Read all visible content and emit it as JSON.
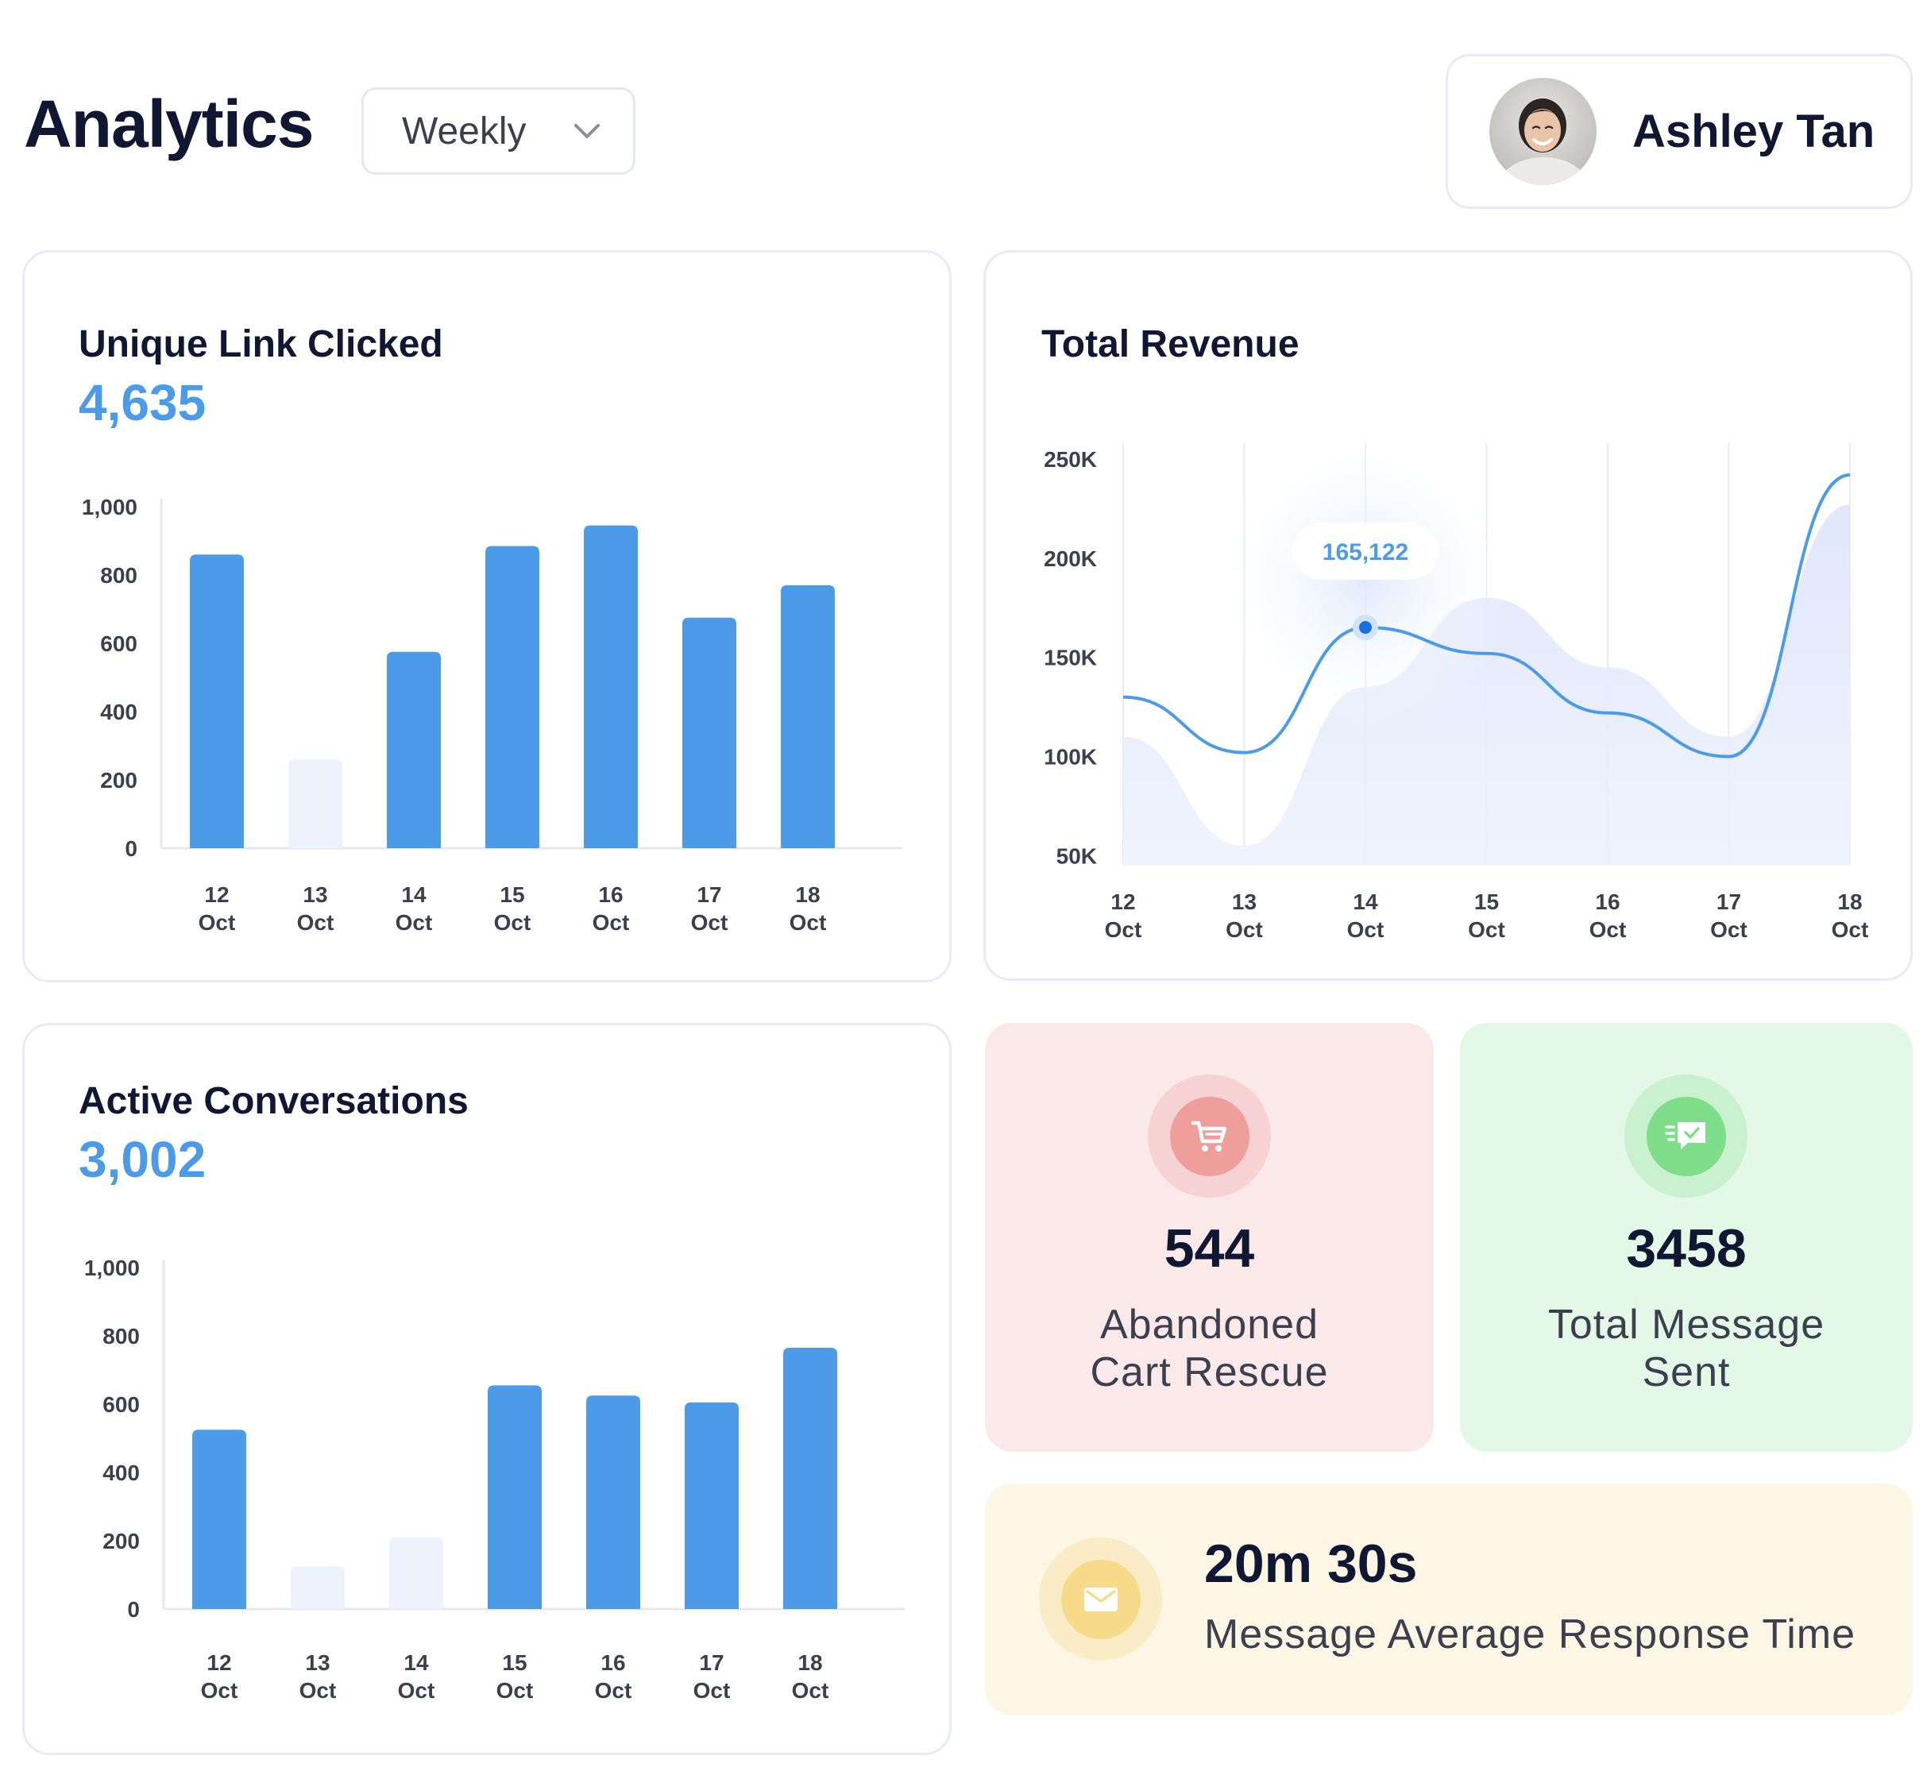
{
  "header": {
    "title": "Analytics",
    "period": {
      "selected": "Weekly",
      "icon": "chevron-down-icon"
    },
    "user": {
      "name": "Ashley Tan",
      "avatar": "user-avatar-photo"
    }
  },
  "colors": {
    "accent": "#4c9be8",
    "bar_muted": "#edf2fd",
    "pink_tile": "#fbe9e9",
    "green_tile": "#e3f8e6",
    "yellow_tile": "#fdf6e4"
  },
  "unique_link": {
    "title": "Unique Link Clicked",
    "value": "4,635",
    "chart_data": {
      "type": "bar",
      "categories": [
        "12 Oct",
        "13 Oct",
        "14 Oct",
        "15 Oct",
        "16 Oct",
        "17 Oct",
        "18 Oct"
      ],
      "values": [
        860,
        260,
        575,
        885,
        945,
        675,
        770
      ],
      "highlighted": [
        true,
        false,
        true,
        true,
        true,
        true,
        true
      ],
      "yticks": [
        "1,000",
        "800",
        "600",
        "400",
        "200",
        "0"
      ],
      "ylim": [
        0,
        1000
      ]
    }
  },
  "total_revenue": {
    "title": "Total Revenue",
    "tooltip": "165,122",
    "chart_data": {
      "type": "line",
      "x": [
        "12 Oct",
        "13 Oct",
        "14 Oct",
        "15 Oct",
        "16 Oct",
        "17 Oct",
        "18 Oct"
      ],
      "series": [
        {
          "values": [
            130000,
            102000,
            165122,
            152000,
            122000,
            100000,
            242000
          ]
        },
        {
          "values": [
            110000,
            55000,
            135000,
            180000,
            145000,
            110000,
            227000
          ]
        }
      ],
      "yticks": [
        "250K",
        "200K",
        "150K",
        "100K",
        "50K"
      ],
      "ylim": [
        45000,
        260000
      ],
      "highlight_index": 2
    }
  },
  "active_conversations": {
    "title": "Active Conversations",
    "value": "3,002",
    "chart_data": {
      "type": "bar",
      "categories": [
        "12 Oct",
        "13 Oct",
        "14 Oct",
        "15 Oct",
        "16 Oct",
        "17 Oct",
        "18 Oct"
      ],
      "values": [
        525,
        125,
        210,
        655,
        625,
        605,
        765
      ],
      "highlighted": [
        true,
        false,
        false,
        true,
        true,
        true,
        true
      ],
      "yticks": [
        "1,000",
        "800",
        "600",
        "400",
        "200",
        "0"
      ],
      "ylim": [
        0,
        1000
      ]
    }
  },
  "stats": {
    "cart": {
      "value": "544",
      "label_line1": "Abandoned",
      "label_line2": "Cart Rescue",
      "icon": "shopping-cart-icon"
    },
    "messages": {
      "value": "3458",
      "label_line1": "Total Message",
      "label_line2": "Sent",
      "icon": "message-sent-icon"
    },
    "response": {
      "value": "20m 30s",
      "label": "Message Average Response Time",
      "icon": "envelope-icon"
    }
  }
}
